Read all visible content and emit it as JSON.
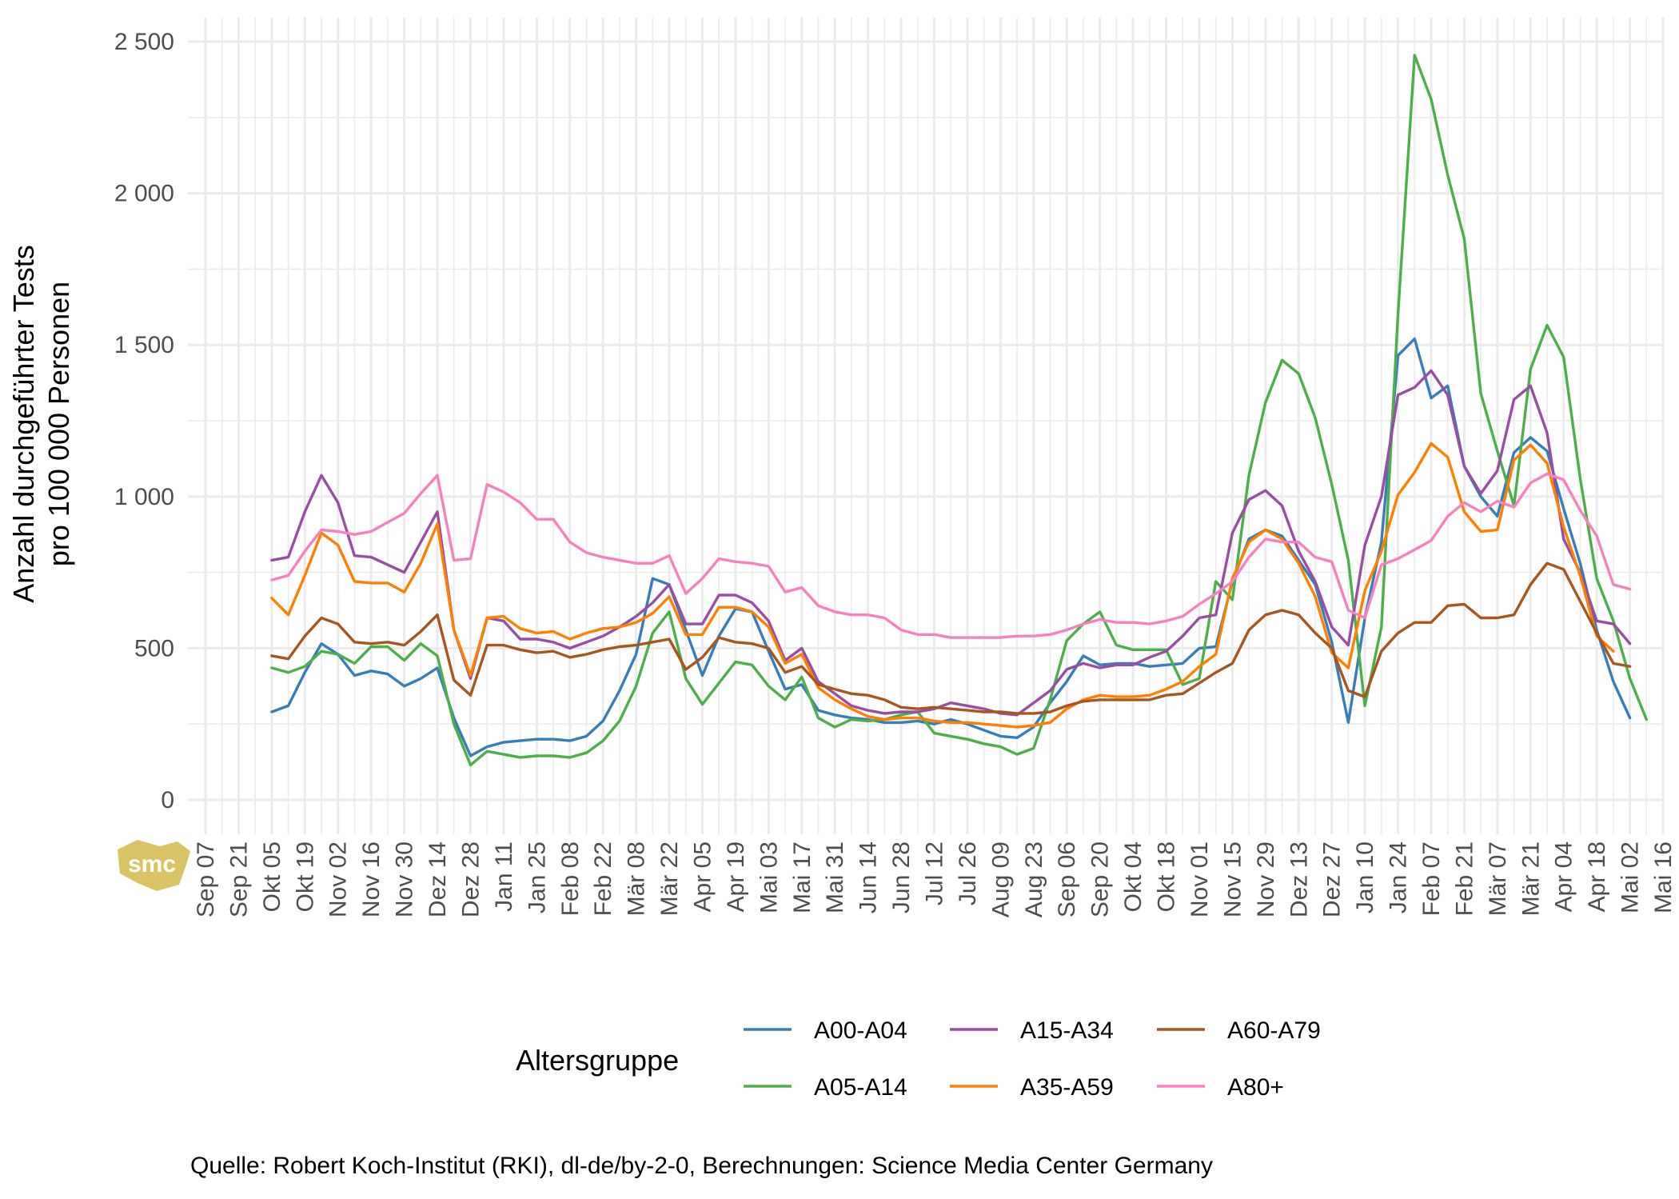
{
  "chart_data": {
    "type": "line",
    "ylabel": "Anzahl durchgeführter Tests\npro 100 000 Personen",
    "ylim": [
      -120,
      2580
    ],
    "yticks": [
      0,
      500,
      1000,
      1500,
      2000,
      2500
    ],
    "ytick_labels": [
      "0",
      "500",
      "1 000",
      "1 500",
      "2 000",
      "2 500"
    ],
    "grid": true,
    "x_ticks": [
      "Sep 07",
      "Sep 21",
      "Okt 05",
      "Okt 19",
      "Nov 02",
      "Nov 16",
      "Nov 30",
      "Dez 14",
      "Dez 28",
      "Jan 11",
      "Jan 25",
      "Feb 08",
      "Feb 22",
      "Mär 08",
      "Mär 22",
      "Apr 05",
      "Apr 19",
      "Mai 03",
      "Mai 17",
      "Mai 31",
      "Jun 14",
      "Jun 28",
      "Jul 12",
      "Jul 26",
      "Aug 09",
      "Aug 23",
      "Sep 06",
      "Sep 20",
      "Okt 04",
      "Okt 18",
      "Nov 01",
      "Nov 15",
      "Nov 29",
      "Dez 13",
      "Dez 27",
      "Jan 10",
      "Jan 24",
      "Feb 07",
      "Feb 21",
      "Mär 07",
      "Mär 21",
      "Apr 04",
      "Apr 18",
      "Mai 02",
      "Mai 16"
    ],
    "x_start_index": 4,
    "legend": {
      "title": "Altersgruppe",
      "position": "bottom"
    },
    "caption": "Quelle: Robert Koch-Institut (RKI), dl-de/by-2-0, Berechnungen: Science Media Center Germany",
    "series": [
      {
        "name": "A00-A04",
        "color": "#377eb8",
        "values": [
          290,
          310,
          420,
          515,
          480,
          410,
          425,
          415,
          375,
          400,
          435,
          270,
          145,
          175,
          190,
          195,
          200,
          200,
          195,
          210,
          260,
          360,
          480,
          730,
          710,
          560,
          410,
          540,
          630,
          620,
          490,
          365,
          380,
          295,
          280,
          270,
          265,
          255,
          255,
          260,
          250,
          265,
          250,
          230,
          210,
          205,
          240,
          320,
          390,
          475,
          445,
          450,
          450,
          440,
          445,
          450,
          500,
          505,
          720,
          860,
          890,
          870,
          790,
          710,
          520,
          255,
          600,
          850,
          1465,
          1520,
          1325,
          1365,
          1100,
          1000,
          935,
          1145,
          1195,
          1150,
          960,
          780,
          560,
          390,
          270
        ]
      },
      {
        "name": "A05-A14",
        "color": "#4daf4a",
        "values": [
          435,
          420,
          440,
          490,
          480,
          450,
          505,
          505,
          460,
          515,
          475,
          250,
          115,
          160,
          150,
          140,
          145,
          145,
          140,
          155,
          195,
          260,
          375,
          550,
          620,
          400,
          315,
          385,
          455,
          445,
          375,
          330,
          405,
          270,
          240,
          265,
          260,
          265,
          280,
          290,
          220,
          210,
          200,
          185,
          175,
          150,
          170,
          330,
          525,
          580,
          620,
          510,
          495,
          495,
          495,
          380,
          400,
          720,
          660,
          1070,
          1310,
          1450,
          1405,
          1260,
          1040,
          790,
          310,
          570,
          1600,
          2455,
          2310,
          2060,
          1850,
          1340,
          1150,
          970,
          1420,
          1565,
          1460,
          1060,
          730,
          590,
          400,
          265
        ]
      },
      {
        "name": "A15-A34",
        "color": "#984ea3",
        "values": [
          790,
          800,
          950,
          1070,
          980,
          805,
          800,
          775,
          750,
          850,
          950,
          560,
          400,
          600,
          590,
          530,
          530,
          520,
          500,
          520,
          540,
          570,
          605,
          650,
          710,
          580,
          580,
          675,
          675,
          650,
          590,
          460,
          500,
          390,
          350,
          310,
          295,
          285,
          290,
          290,
          300,
          320,
          310,
          300,
          285,
          280,
          320,
          360,
          430,
          450,
          435,
          445,
          445,
          470,
          490,
          540,
          600,
          610,
          880,
          990,
          1020,
          970,
          820,
          720,
          570,
          510,
          840,
          1000,
          1335,
          1360,
          1415,
          1335,
          1100,
          1010,
          1085,
          1320,
          1365,
          1210,
          860,
          750,
          590,
          580,
          515
        ]
      },
      {
        "name": "A35-A59",
        "color": "#ff7f00",
        "values": [
          665,
          610,
          740,
          880,
          840,
          720,
          715,
          715,
          685,
          780,
          910,
          560,
          410,
          600,
          605,
          565,
          550,
          555,
          530,
          550,
          565,
          570,
          585,
          615,
          670,
          545,
          545,
          635,
          635,
          620,
          570,
          450,
          480,
          370,
          330,
          300,
          275,
          265,
          270,
          270,
          260,
          255,
          255,
          250,
          245,
          240,
          245,
          255,
          300,
          330,
          345,
          340,
          340,
          345,
          365,
          390,
          440,
          480,
          730,
          850,
          890,
          860,
          780,
          670,
          485,
          435,
          690,
          820,
          1005,
          1080,
          1175,
          1130,
          950,
          885,
          890,
          1120,
          1170,
          1110,
          900,
          740,
          540,
          490
        ]
      },
      {
        "name": "A60-A79",
        "color": "#a6561e",
        "values": [
          475,
          465,
          540,
          600,
          580,
          520,
          515,
          520,
          510,
          555,
          610,
          395,
          345,
          510,
          510,
          495,
          485,
          490,
          470,
          480,
          495,
          505,
          510,
          520,
          530,
          430,
          470,
          535,
          520,
          515,
          500,
          420,
          440,
          380,
          365,
          350,
          345,
          330,
          305,
          300,
          305,
          300,
          295,
          290,
          290,
          285,
          285,
          290,
          310,
          325,
          330,
          330,
          330,
          330,
          345,
          350,
          385,
          420,
          450,
          560,
          610,
          625,
          610,
          550,
          500,
          360,
          340,
          490,
          550,
          585,
          585,
          640,
          645,
          600,
          600,
          610,
          710,
          780,
          760,
          655,
          550,
          450,
          440
        ]
      },
      {
        "name": "A80+",
        "color": "#f781bf",
        "values": [
          725,
          740,
          820,
          890,
          885,
          875,
          885,
          915,
          945,
          1010,
          1070,
          790,
          795,
          1040,
          1015,
          980,
          925,
          925,
          850,
          815,
          800,
          790,
          780,
          780,
          805,
          680,
          730,
          795,
          785,
          780,
          770,
          685,
          700,
          640,
          620,
          610,
          610,
          600,
          560,
          545,
          545,
          535,
          535,
          535,
          535,
          540,
          540,
          545,
          560,
          580,
          595,
          585,
          585,
          580,
          590,
          605,
          645,
          680,
          720,
          800,
          860,
          850,
          850,
          800,
          785,
          625,
          600,
          775,
          795,
          825,
          855,
          935,
          980,
          950,
          985,
          965,
          1045,
          1075,
          1055,
          955,
          870,
          710,
          695
        ]
      }
    ]
  },
  "watermark": {
    "text": "smc",
    "color": "#d4b84a"
  }
}
